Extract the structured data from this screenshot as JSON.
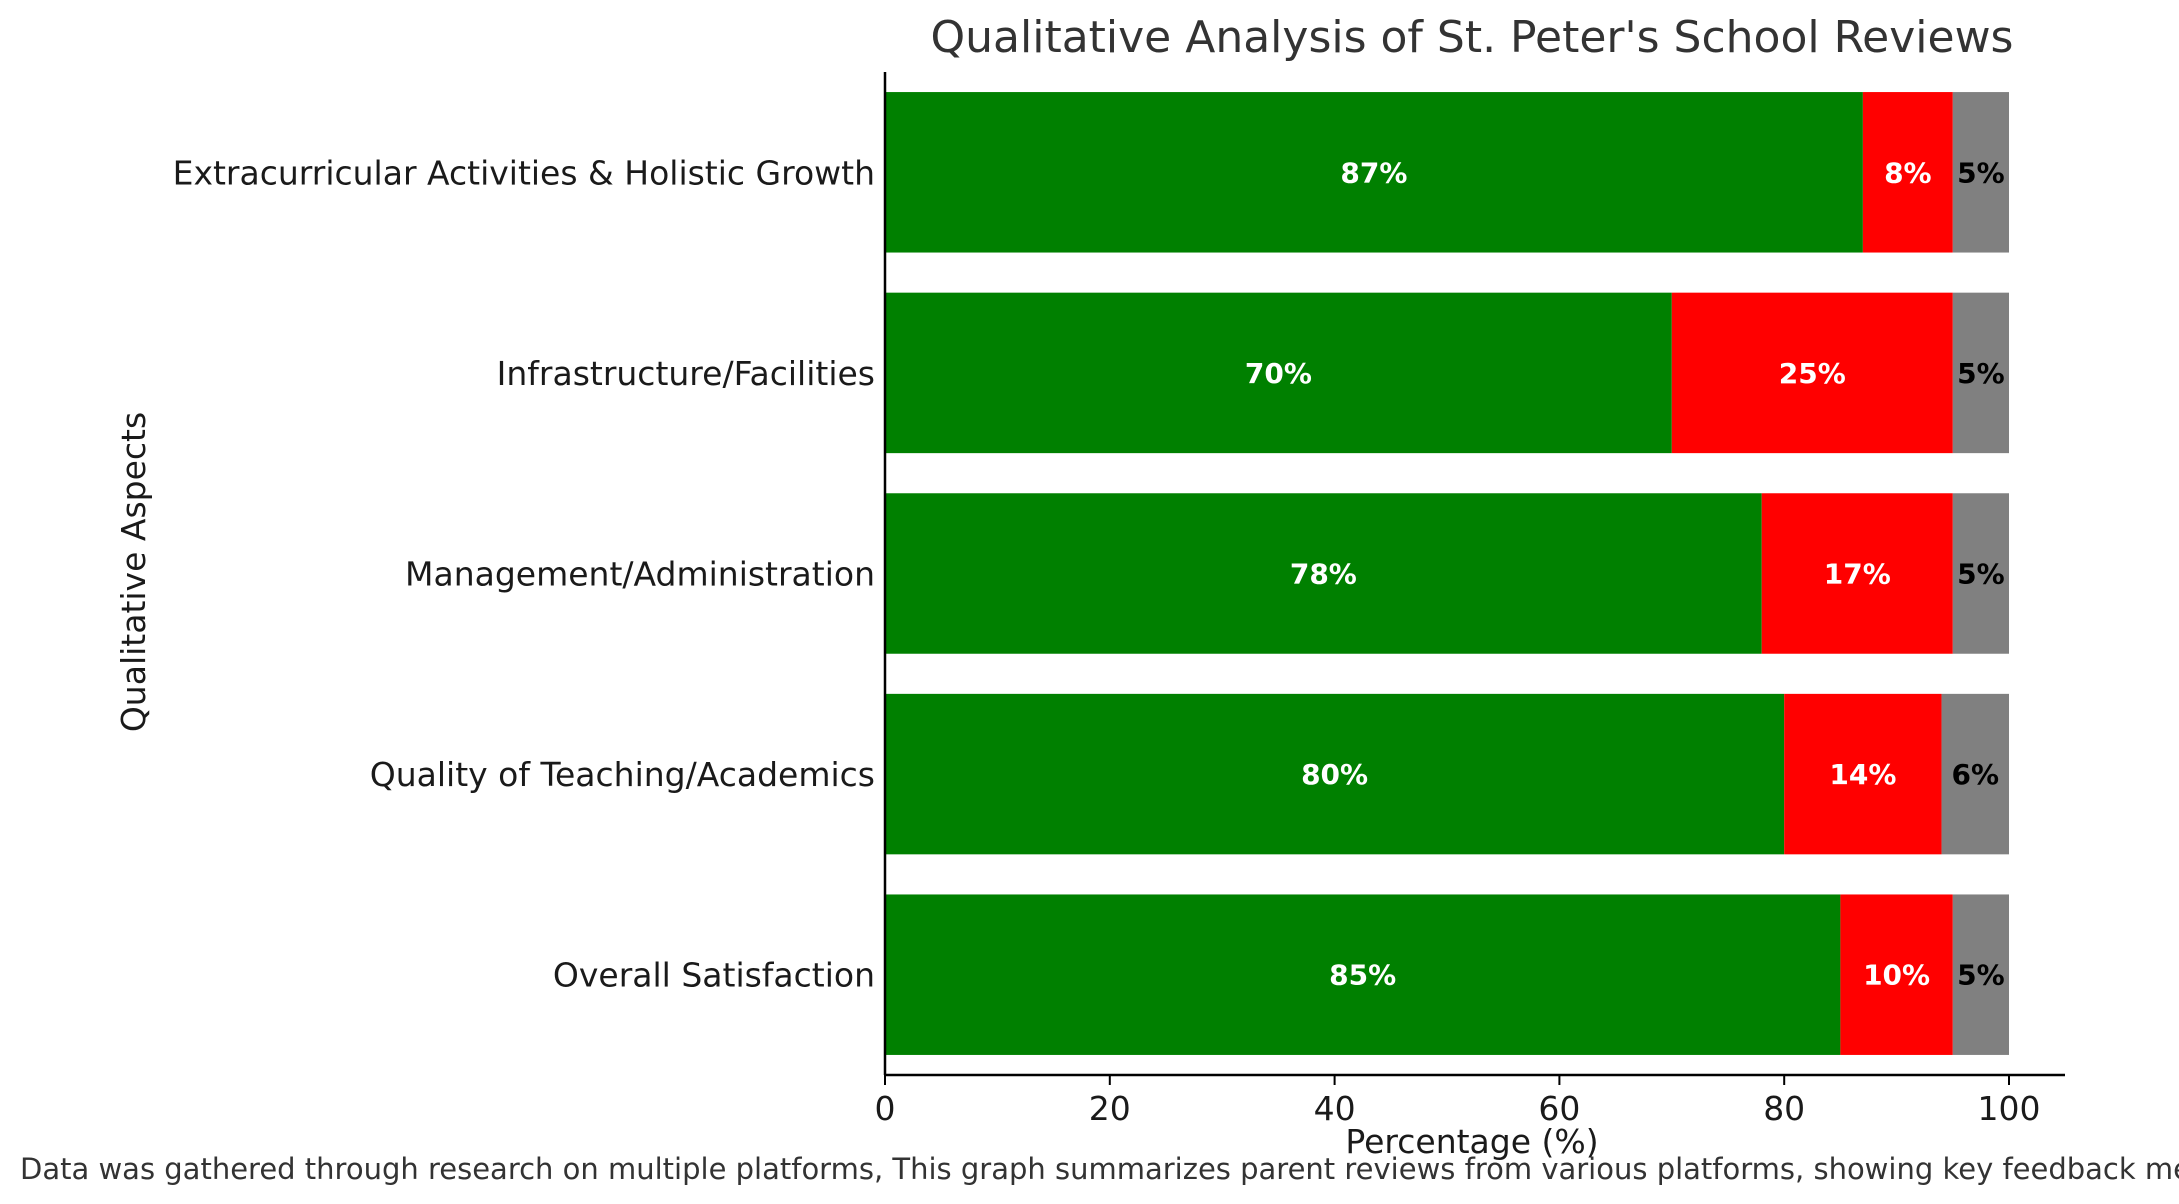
{
  "chart_data": {
    "type": "bar",
    "orientation": "horizontal",
    "stacked": true,
    "title": "Qualitative Analysis of St. Peter's School Reviews",
    "xlabel": "Percentage (%)",
    "ylabel": "Qualitative Aspects",
    "xlim": [
      0,
      100
    ],
    "xticks": [
      0,
      20,
      40,
      60,
      80,
      100
    ],
    "categories": [
      "Overall Satisfaction",
      "Quality of Teaching/Academics",
      "Management/Administration",
      "Infrastructure/Facilities",
      "Extracurricular Activities & Holistic Growth"
    ],
    "series": [
      {
        "values": [
          85,
          80,
          78,
          70,
          87
        ],
        "color": "#008000",
        "label_color": "#ffffff"
      },
      {
        "values": [
          10,
          14,
          17,
          25,
          8
        ],
        "color": "#ff0000",
        "label_color": "#ffffff"
      },
      {
        "values": [
          5,
          6,
          5,
          5,
          5
        ],
        "color": "#808080",
        "label_color": "#000000"
      }
    ],
    "value_suffix": "%",
    "grid": false,
    "legend": "none"
  },
  "footnote": "Data was gathered through research on multiple platforms, This graph summarizes parent reviews from various platforms, showing key feedback metrics"
}
